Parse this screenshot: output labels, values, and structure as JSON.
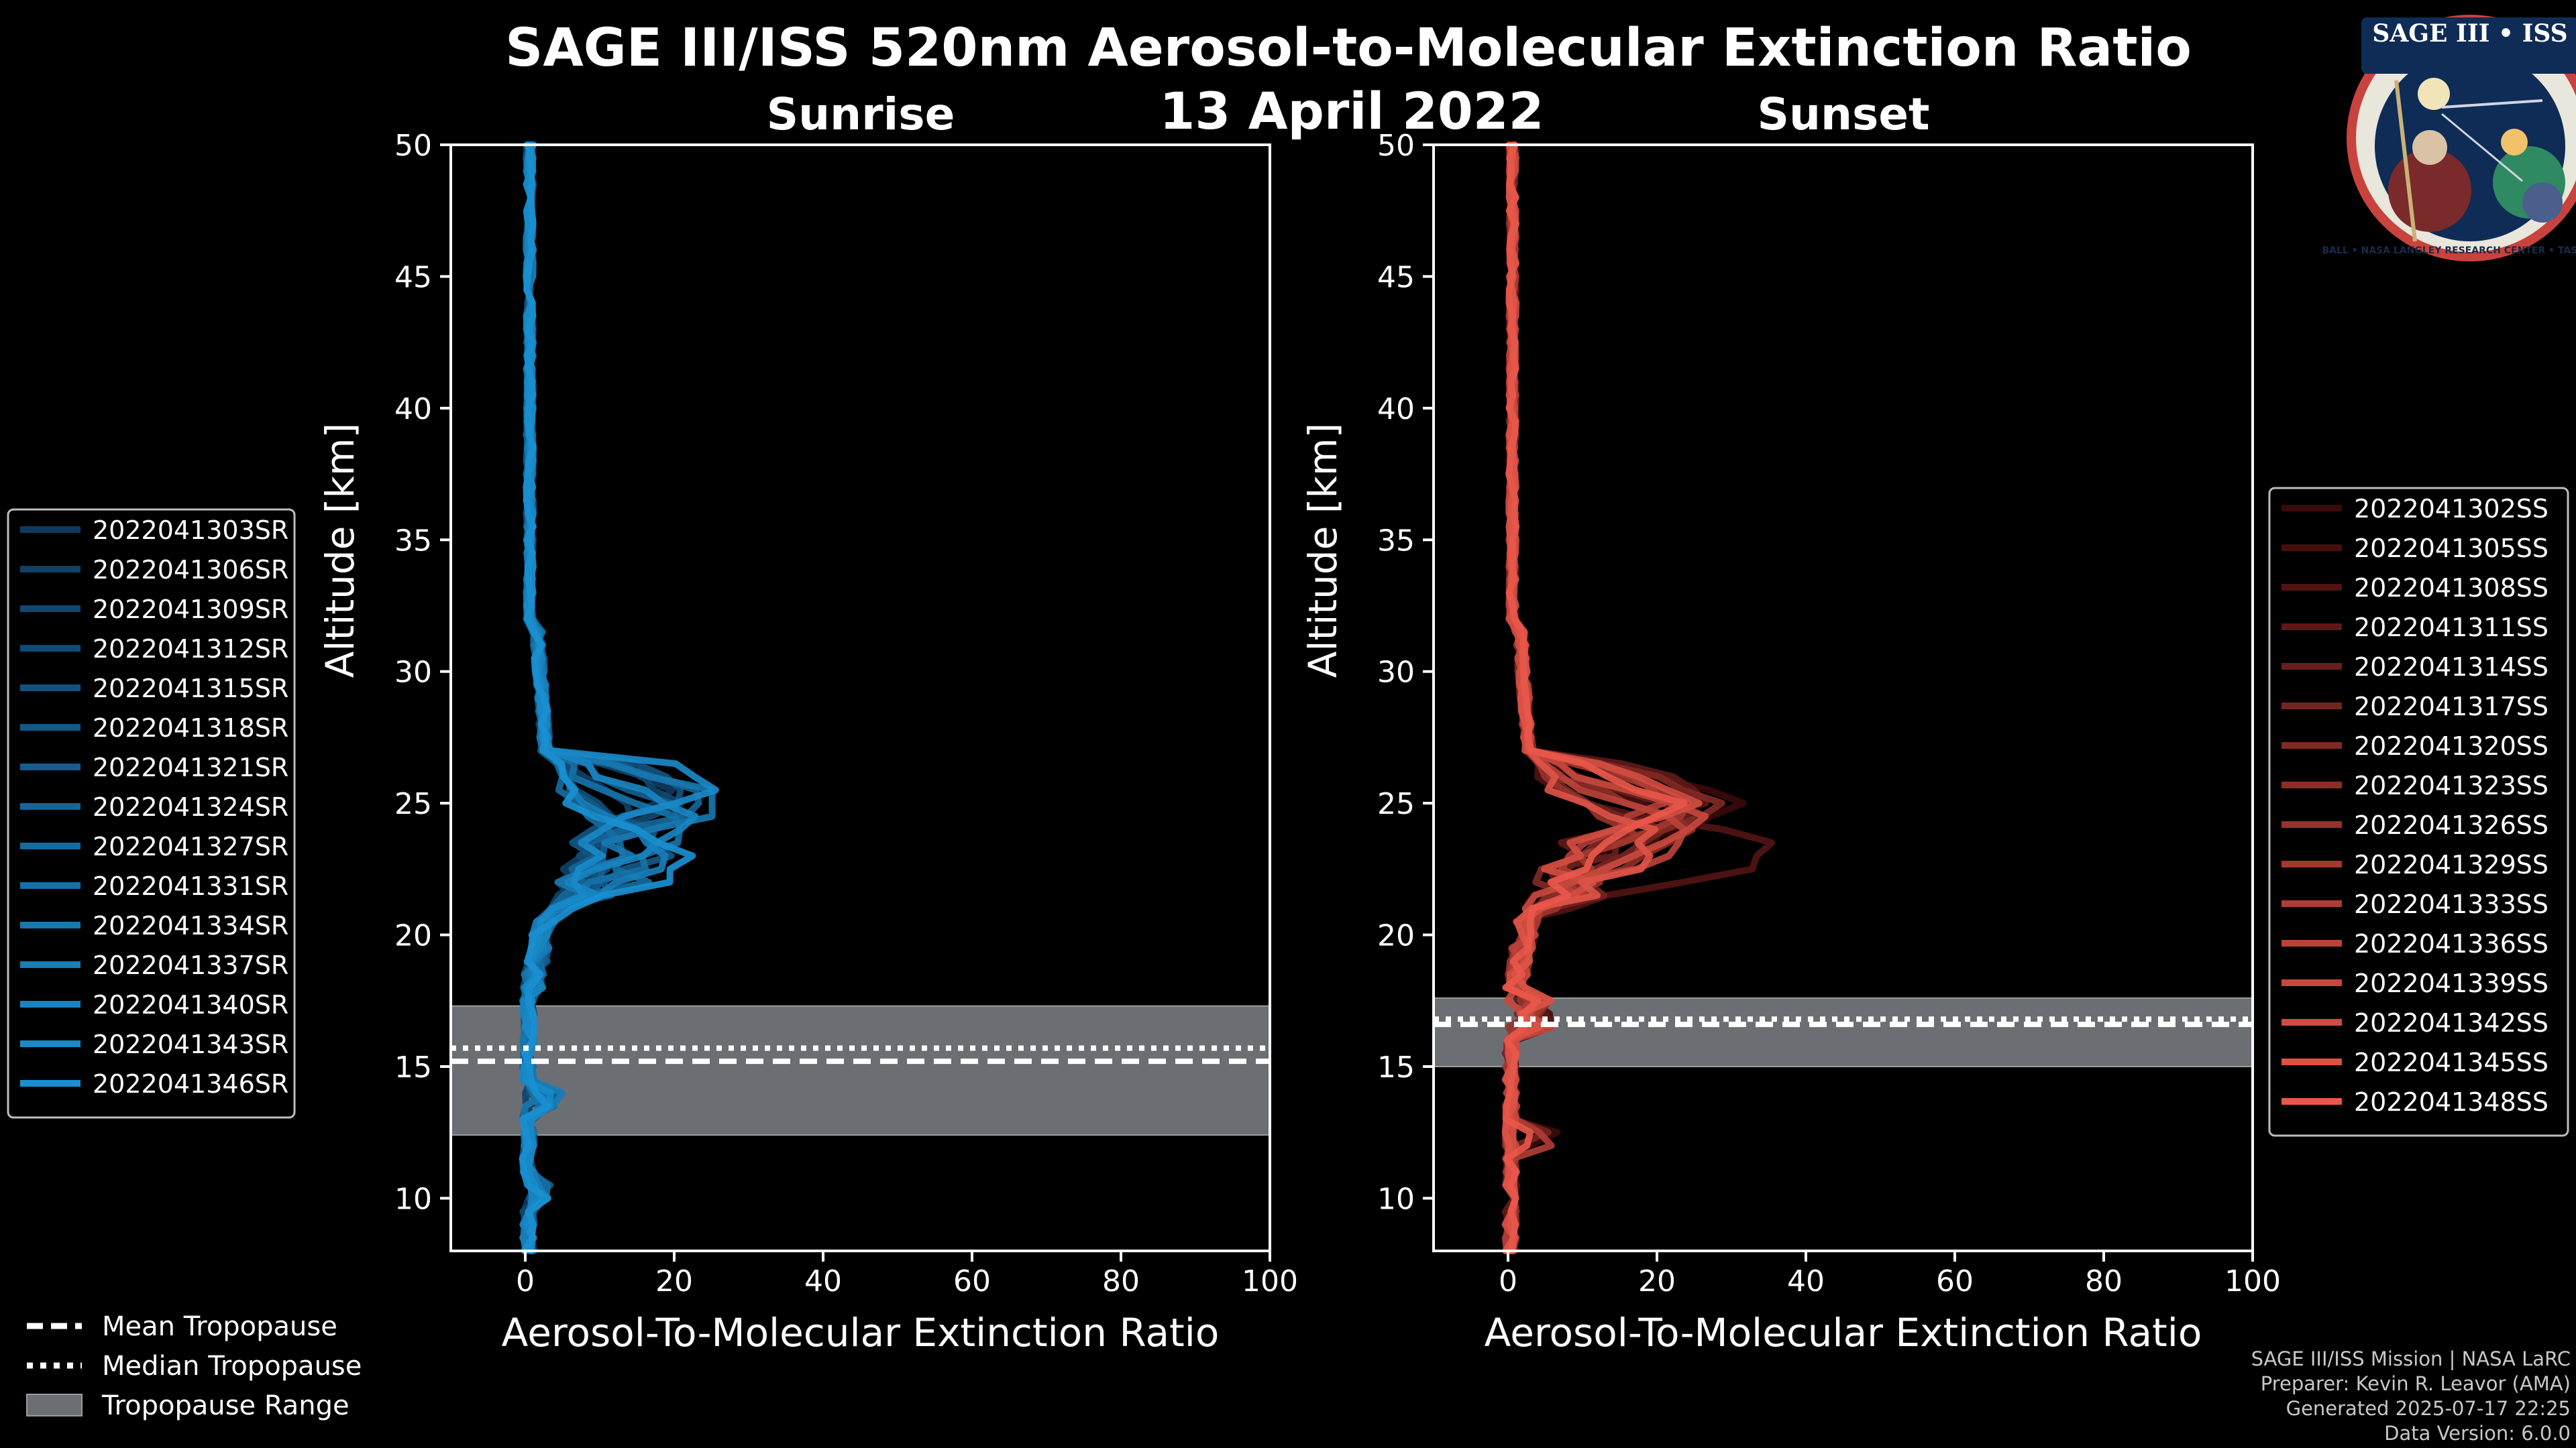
{
  "title": "SAGE III/ISS 520nm Aerosol-to-Molecular Extinction Ratio",
  "date": "13 April 2022",
  "colors": {
    "background": "#000000",
    "sunrise": "#1a8fd0",
    "sunset": "#e8574a",
    "tropopause_band": "#6b6e72",
    "axis": "#ffffff"
  },
  "logo": {
    "name": "SAGE III • ISS",
    "ring_text": "BALL • NASA LANGLEY RESEARCH CENTER • TAS-I • ESA"
  },
  "chart_data": [
    {
      "type": "line",
      "panel": "Sunrise",
      "title": "Sunrise",
      "xlabel": "Aerosol-To-Molecular Extinction Ratio",
      "ylabel": "Altitude [km]",
      "xlim": [
        -10,
        100
      ],
      "ylim": [
        8,
        50
      ],
      "xticks": [
        "0",
        "20",
        "40",
        "60",
        "80",
        "100"
      ],
      "yticks": [
        "10",
        "15",
        "20",
        "25",
        "30",
        "35",
        "40",
        "45",
        "50"
      ],
      "tropopause": {
        "mean": 15.2,
        "median": 15.7,
        "range": [
          12.4,
          17.3
        ]
      },
      "series": [
        {
          "name": "2022041303SR",
          "peak_altitude": 25.4,
          "peak_value": 14
        },
        {
          "name": "2022041306SR",
          "peak_altitude": 24.8,
          "peak_value": 11
        },
        {
          "name": "2022041309SR",
          "peak_altitude": 25.1,
          "peak_value": 16
        },
        {
          "name": "2022041312SR",
          "peak_altitude": 24.2,
          "peak_value": 9
        },
        {
          "name": "2022041315SR",
          "peak_altitude": 25.6,
          "peak_value": 18
        },
        {
          "name": "2022041318SR",
          "peak_altitude": 23.7,
          "peak_value": 12
        },
        {
          "name": "2022041321SR",
          "peak_altitude": 24.6,
          "peak_value": 15
        },
        {
          "name": "2022041324SR",
          "peak_altitude": 25.2,
          "peak_value": 20
        },
        {
          "name": "2022041327SR",
          "peak_altitude": 22.9,
          "peak_value": 10
        },
        {
          "name": "2022041331SR",
          "peak_altitude": 24.0,
          "peak_value": 17
        },
        {
          "name": "2022041334SR",
          "peak_altitude": 25.0,
          "peak_value": 23
        },
        {
          "name": "2022041337SR",
          "peak_altitude": 23.3,
          "peak_value": 13
        },
        {
          "name": "2022041340SR",
          "peak_altitude": 24.4,
          "peak_value": 19
        },
        {
          "name": "2022041343SR",
          "peak_altitude": 25.8,
          "peak_value": 21
        },
        {
          "name": "2022041346SR",
          "peak_altitude": 23.0,
          "peak_value": 17
        }
      ]
    },
    {
      "type": "line",
      "panel": "Sunset",
      "title": "Sunset",
      "xlabel": "Aerosol-To-Molecular Extinction Ratio",
      "ylabel": "Altitude [km]",
      "xlim": [
        -10,
        100
      ],
      "ylim": [
        8,
        50
      ],
      "xticks": [
        "0",
        "20",
        "40",
        "60",
        "80",
        "100"
      ],
      "yticks": [
        "10",
        "15",
        "20",
        "25",
        "30",
        "35",
        "40",
        "45",
        "50"
      ],
      "tropopause": {
        "mean": 16.6,
        "median": 16.8,
        "range": [
          15.0,
          17.6
        ]
      },
      "series": [
        {
          "name": "2022041302SS",
          "peak_altitude": 24.9,
          "peak_value": 27
        },
        {
          "name": "2022041305SS",
          "peak_altitude": 24.2,
          "peak_value": 18
        },
        {
          "name": "2022041308SS",
          "peak_altitude": 23.2,
          "peak_value": 31
        },
        {
          "name": "2022041311SS",
          "peak_altitude": 25.3,
          "peak_value": 22
        },
        {
          "name": "2022041314SS",
          "peak_altitude": 24.5,
          "peak_value": 19
        },
        {
          "name": "2022041317SS",
          "peak_altitude": 23.8,
          "peak_value": 16
        },
        {
          "name": "2022041320SS",
          "peak_altitude": 25.0,
          "peak_value": 24
        },
        {
          "name": "2022041323SS",
          "peak_altitude": 24.0,
          "peak_value": 20
        },
        {
          "name": "2022041326SS",
          "peak_altitude": 23.5,
          "peak_value": 14
        },
        {
          "name": "2022041329SS",
          "peak_altitude": 24.7,
          "peak_value": 21
        },
        {
          "name": "2022041333SS",
          "peak_altitude": 25.2,
          "peak_value": 17
        },
        {
          "name": "2022041336SS",
          "peak_altitude": 23.9,
          "peak_value": 19
        },
        {
          "name": "2022041339SS",
          "peak_altitude": 24.4,
          "peak_value": 22
        },
        {
          "name": "2022041342SS",
          "peak_altitude": 25.1,
          "peak_value": 20
        },
        {
          "name": "2022041345SS",
          "peak_altitude": 23.6,
          "peak_value": 15
        },
        {
          "name": "2022041348SS",
          "peak_altitude": 24.8,
          "peak_value": 18
        }
      ]
    }
  ],
  "bottom_legend": {
    "mean": "Mean Tropopause",
    "median": "Median Tropopause",
    "range": "Tropopause Range"
  },
  "footer": [
    "SAGE III/ISS Mission | NASA LaRC",
    "Preparer: Kevin R. Leavor (AMA)",
    "Generated 2025-07-17 22:25",
    "Data Version: 6.0.0"
  ]
}
